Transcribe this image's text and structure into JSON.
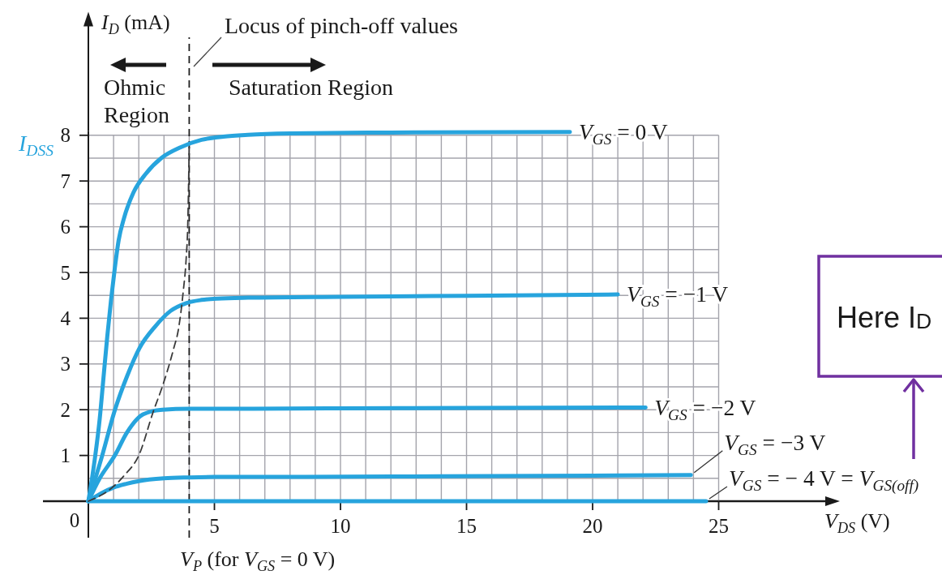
{
  "chart_data": {
    "type": "line",
    "xlabel": "V$_{DS}$ (V)",
    "ylabel": "I$_{D}$ (mA)",
    "xlim": [
      0,
      25
    ],
    "ylim": [
      0,
      8.1
    ],
    "xticks": [
      0,
      {
        "value": 1,
        "label": null
      },
      {
        "value": 2,
        "label": null
      },
      {
        "value": 3,
        "label": null
      },
      {
        "value": 4,
        "label": null
      },
      5,
      {
        "value": 6,
        "label": null
      },
      {
        "value": 7,
        "label": null
      },
      {
        "value": 8,
        "label": null
      },
      {
        "value": 9,
        "label": null
      },
      10,
      {
        "value": 11,
        "label": null
      },
      {
        "value": 12,
        "label": null
      },
      {
        "value": 13,
        "label": null
      },
      {
        "value": 14,
        "label": null
      },
      15,
      {
        "value": 16,
        "label": null
      },
      {
        "value": 17,
        "label": null
      },
      {
        "value": 18,
        "label": null
      },
      {
        "value": 19,
        "label": null
      },
      20,
      {
        "value": 21,
        "label": null
      },
      {
        "value": 22,
        "label": null
      },
      {
        "value": 23,
        "label": null
      },
      {
        "value": 24,
        "label": null
      },
      25
    ],
    "yticks": [
      {
        "value": 0,
        "label": null
      },
      {
        "value": 0.5,
        "label": null
      },
      1,
      {
        "value": 1.5,
        "label": null
      },
      2,
      {
        "value": 2.5,
        "label": null
      },
      3,
      {
        "value": 3.5,
        "label": null
      },
      4,
      {
        "value": 4.5,
        "label": null
      },
      5,
      {
        "value": 5.5,
        "label": null
      },
      6,
      {
        "value": 6.5,
        "label": null
      },
      7,
      {
        "value": 7.5,
        "label": null
      },
      8
    ],
    "grid": true,
    "line_style": "solid",
    "series": [
      {
        "name": "V$_{GS}$ = 0 V",
        "color": "#27a4dd",
        "x": [
          0,
          0.25,
          0.45,
          0.6,
          0.75,
          0.9,
          1.05,
          1.2,
          1.42,
          1.79,
          2.28,
          2.89,
          3.63,
          4.49,
          5.35,
          6.33,
          8,
          12,
          19.1
        ],
        "values": [
          0,
          0.9,
          1.8,
          2.7,
          3.6,
          4.4,
          5.1,
          5.7,
          6.2,
          6.75,
          7.16,
          7.5,
          7.73,
          7.9,
          7.97,
          8.01,
          8.04,
          8.06,
          8.07
        ]
      },
      {
        "name": "V$_{GS}$ = −1 V",
        "color": "#27a4dd",
        "x": [
          0,
          0.55,
          1.05,
          1.54,
          2.03,
          2.65,
          3.26,
          3.88,
          4.49,
          5.11,
          6.33,
          10,
          15,
          21
        ],
        "values": [
          0,
          1,
          1.99,
          2.74,
          3.35,
          3.82,
          4.16,
          4.33,
          4.4,
          4.43,
          4.45,
          4.47,
          4.49,
          4.52
        ]
      },
      {
        "name": "V$_{GS}$ = −2 V",
        "color": "#27a4dd",
        "x": [
          0,
          0.45,
          1.05,
          1.53,
          2.18,
          2.93,
          4,
          6,
          10,
          15,
          22.1
        ],
        "values": [
          0,
          0.5,
          1,
          1.5,
          1.9,
          2,
          2.02,
          2.02,
          2.03,
          2.04,
          2.05
        ]
      },
      {
        "name": "V$_{GS}$ = −3 V",
        "color": "#27a4dd",
        "x": [
          0,
          0.5,
          1,
          1.5,
          2,
          3,
          4,
          5,
          8,
          12,
          16,
          20,
          23.9
        ],
        "values": [
          0,
          0.17,
          0.3,
          0.38,
          0.44,
          0.5,
          0.52,
          0.53,
          0.53,
          0.54,
          0.55,
          0.56,
          0.57
        ]
      },
      {
        "name": "V$_{GS}$ = − 4 V = V$_{GS(off)}$",
        "color": "#27a4dd",
        "x": [
          0,
          24.5
        ],
        "values": [
          0,
          0
        ]
      },
      {
        "color": "#3a3a3a",
        "line_style": "dashed",
        "x": [
          0,
          0.93,
          1.42,
          2,
          2.6,
          2.9,
          3.39,
          3.57,
          3.76,
          3.88,
          3.94,
          4
        ],
        "values": [
          0,
          0.29,
          0.56,
          1,
          2,
          2.45,
          3.35,
          3.75,
          4.57,
          5.31,
          5.99,
          7.75
        ]
      }
    ],
    "ref_lines": [
      {
        "axis": "x",
        "value": 4,
        "line_style": "dashed",
        "color": "#1e1e1e"
      }
    ],
    "annotations": [
      "Ohmic\nRegion",
      "Saturation Region",
      "Locus of pinch-off values",
      "I$_{DSS}$",
      "Here I$_{D}$",
      "V$_{P}$ (for V$_{GS}$ = 0 V)"
    ]
  }
}
